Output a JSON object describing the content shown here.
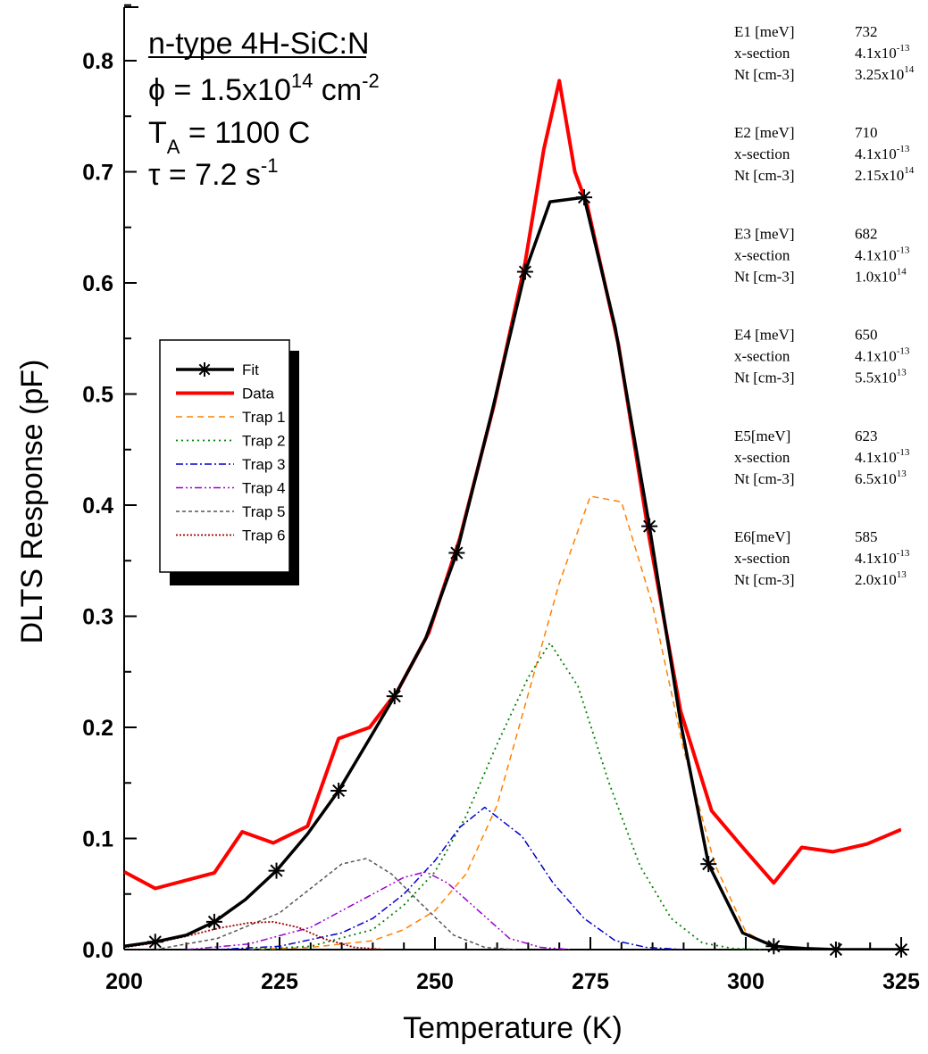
{
  "chart_data": {
    "type": "line",
    "xlabel": "Temperature (K)",
    "ylabel": "DLTS Response (pF)",
    "xlim": [
      200,
      325
    ],
    "ylim": [
      0,
      0.85
    ],
    "x_ticks": [
      "200",
      "225",
      "250",
      "275",
      "300",
      "325"
    ],
    "y_ticks": [
      "0.0",
      "0.1",
      "0.2",
      "0.3",
      "0.4",
      "0.5",
      "0.6",
      "0.7",
      "0.8"
    ],
    "grid": false,
    "legend_position": "middle-left",
    "conditions": {
      "sample": "n-type 4H-SiC:N",
      "fluence": {
        "prefix": "ϕ = 1.5x10",
        "exp": "14",
        "unit": " cm",
        "unit_exp": "-2"
      },
      "anneal": {
        "main": "T",
        "sub": "A",
        "value": " = 1100 C"
      },
      "rate": {
        "prefix": "τ = 7.2 s",
        "exp": "-1"
      }
    },
    "series": [
      {
        "name": "Fit",
        "color": "#000000",
        "dash": "",
        "width": 3.5,
        "marker": "asterisk",
        "x": [
          200,
          205,
          210,
          214.5,
          219.5,
          224.5,
          229.5,
          234.5,
          239.5,
          243.5,
          248.5,
          253.5,
          259,
          264.5,
          268.5,
          274,
          279,
          284.5,
          289.5,
          294,
          299.5,
          304.5,
          309.5,
          314.5,
          319.5,
          325
        ],
        "y": [
          0.003,
          0.007,
          0.013,
          0.025,
          0.045,
          0.071,
          0.104,
          0.143,
          0.19,
          0.228,
          0.28,
          0.357,
          0.48,
          0.61,
          0.673,
          0.677,
          0.56,
          0.381,
          0.205,
          0.077,
          0.015,
          0.003,
          0.001,
          0,
          0,
          0
        ]
      },
      {
        "name": "Data",
        "color": "#ff0000",
        "dash": "",
        "width": 4,
        "x": [
          200,
          205,
          214.5,
          219,
          224,
          229.5,
          234.5,
          239.5,
          244,
          249,
          254,
          259.5,
          264.5,
          267.5,
          270,
          272.5,
          274.5,
          279.5,
          284.5,
          289.5,
          294.5,
          299.5,
          304.5,
          309,
          314,
          319.5,
          325
        ],
        "y": [
          0.07,
          0.055,
          0.069,
          0.106,
          0.096,
          0.111,
          0.19,
          0.2,
          0.233,
          0.285,
          0.37,
          0.49,
          0.618,
          0.72,
          0.782,
          0.7,
          0.67,
          0.545,
          0.37,
          0.215,
          0.125,
          0.092,
          0.06,
          0.092,
          0.088,
          0.095,
          0.108
        ]
      },
      {
        "name": "Trap 1",
        "color": "#ff8000",
        "dash": "7,5",
        "width": 1.5,
        "x": [
          220,
          230,
          240,
          245,
          250,
          255,
          260,
          265,
          270,
          275,
          280,
          285,
          290,
          295,
          300,
          305
        ],
        "y": [
          0,
          0.002,
          0.008,
          0.018,
          0.035,
          0.068,
          0.13,
          0.23,
          0.33,
          0.408,
          0.403,
          0.31,
          0.18,
          0.077,
          0.016,
          0
        ]
      },
      {
        "name": "Trap 2",
        "color": "#008000",
        "dash": "2,4",
        "width": 1.8,
        "x": [
          220,
          230,
          240,
          245,
          250,
          255,
          260,
          265,
          268.5,
          273,
          278,
          283,
          288,
          293,
          298,
          303
        ],
        "y": [
          0,
          0.003,
          0.018,
          0.04,
          0.07,
          0.12,
          0.185,
          0.245,
          0.276,
          0.237,
          0.15,
          0.075,
          0.028,
          0.006,
          0.001,
          0
        ]
      },
      {
        "name": "Trap 3",
        "color": "#0000cc",
        "dash": "8,3,2,3",
        "width": 1.5,
        "x": [
          215,
          225,
          235,
          240,
          245,
          250,
          254,
          258,
          264,
          269,
          274,
          279,
          284,
          290
        ],
        "y": [
          0,
          0.003,
          0.015,
          0.028,
          0.05,
          0.08,
          0.11,
          0.128,
          0.102,
          0.06,
          0.028,
          0.008,
          0.002,
          0
        ]
      },
      {
        "name": "Trap 4",
        "color": "#9900cc",
        "dash": "8,3,2,3,2,3",
        "width": 1.5,
        "x": [
          210,
          220,
          230,
          235,
          240,
          245,
          248.5,
          252,
          257,
          262,
          267,
          272
        ],
        "y": [
          0,
          0.005,
          0.02,
          0.035,
          0.05,
          0.065,
          0.07,
          0.06,
          0.035,
          0.01,
          0.002,
          0
        ]
      },
      {
        "name": "Trap 5",
        "color": "#555555",
        "dash": "4,3",
        "width": 1.5,
        "x": [
          205,
          215,
          225,
          230,
          235,
          239,
          243,
          248,
          253,
          258,
          263
        ],
        "y": [
          0,
          0.01,
          0.033,
          0.055,
          0.077,
          0.082,
          0.068,
          0.04,
          0.013,
          0.002,
          0
        ]
      },
      {
        "name": "Trap 6",
        "color": "#990000",
        "dash": "2,2",
        "width": 1.8,
        "x": [
          200,
          205,
          210,
          215,
          220,
          224,
          228,
          232,
          237,
          242
        ],
        "y": [
          0.002,
          0.006,
          0.012,
          0.019,
          0.024,
          0.025,
          0.02,
          0.01,
          0.002,
          0
        ]
      }
    ],
    "parameters": [
      {
        "label": "E1 [meV]",
        "energy": "732",
        "xs_label": "x-section",
        "xs_mant": "4.1x10",
        "xs_exp": "-13",
        "nt_label": "Nt [cm-3]",
        "nt_mant": "3.25x10",
        "nt_exp": "14"
      },
      {
        "label": "E2 [meV]",
        "energy": "710",
        "xs_label": "x-section",
        "xs_mant": "4.1x10",
        "xs_exp": "-13",
        "nt_label": "Nt [cm-3]",
        "nt_mant": "2.15x10",
        "nt_exp": "14"
      },
      {
        "label": "E3 [meV]",
        "energy": "682",
        "xs_label": "x-section",
        "xs_mant": "4.1x10",
        "xs_exp": "-13",
        "nt_label": "Nt [cm-3]",
        "nt_mant": "1.0x10",
        "nt_exp": "14"
      },
      {
        "label": "E4 [meV]",
        "energy": "650",
        "xs_label": "x-section",
        "xs_mant": "4.1x10",
        "xs_exp": "-13",
        "nt_label": "Nt [cm-3]",
        "nt_mant": "5.5x10",
        "nt_exp": "13"
      },
      {
        "label": "E5[meV]",
        "energy": "623",
        "xs_label": "x-section",
        "xs_mant": "4.1x10",
        "xs_exp": "-13",
        "nt_label": "Nt [cm-3]",
        "nt_mant": "6.5x10",
        "nt_exp": "13"
      },
      {
        "label": "E6[meV]",
        "energy": "585",
        "xs_label": "x-section",
        "xs_mant": "4.1x10",
        "xs_exp": "-13",
        "nt_label": "Nt [cm-3]",
        "nt_mant": "2.0x10",
        "nt_exp": "13"
      }
    ]
  }
}
